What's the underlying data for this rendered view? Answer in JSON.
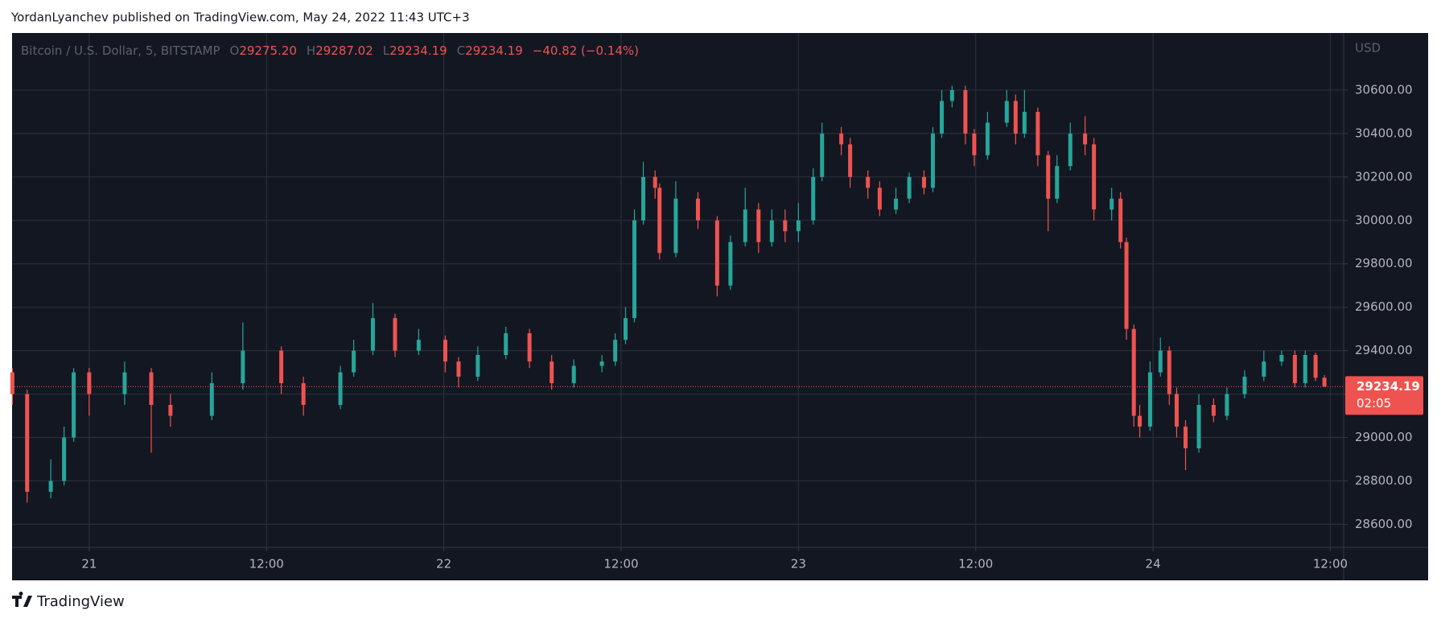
{
  "header": "YordanLyanchev published on TradingView.com, May 24, 2022 11:43 UTC+3",
  "footer": "TradingView",
  "chart_data": {
    "type": "candlestick",
    "symbol": "Bitcoin / U.S. Dollar, 5, BITSTAMP",
    "ohlc_legend": [
      {
        "name": "O",
        "value": "29275.20"
      },
      {
        "name": "H",
        "value": "29287.02"
      },
      {
        "name": "L",
        "value": "29234.19"
      },
      {
        "name": "C",
        "value": "29234.19"
      }
    ],
    "change": "−40.82 (−0.14%)",
    "currency": "USD",
    "up_color": "#26a69a",
    "down_color": "#ef5350",
    "grid": true,
    "xlim": [
      -5.22,
      84.9
    ],
    "xticks": [
      {
        "value": 0,
        "label": "21"
      },
      {
        "value": 12,
        "label": "12:00"
      },
      {
        "value": 24,
        "label": "22"
      },
      {
        "value": 36,
        "label": "12:00"
      },
      {
        "value": 48,
        "label": "23"
      },
      {
        "value": 60,
        "label": "12:00"
      },
      {
        "value": 72,
        "label": "24"
      },
      {
        "value": 84,
        "label": "12:00"
      }
    ],
    "ylim": [
      28494,
      30863
    ],
    "yticks": [
      {
        "value": 28600,
        "label": "28600.00"
      },
      {
        "value": 28800,
        "label": "28800.00"
      },
      {
        "value": 29000,
        "label": "29000.00"
      },
      {
        "value": 29200,
        "label": "29200.00"
      },
      {
        "value": 29400,
        "label": "29400.00"
      },
      {
        "value": 29600,
        "label": "29600.00"
      },
      {
        "value": 29800,
        "label": "29800.00"
      },
      {
        "value": 30000,
        "label": "30000.00"
      },
      {
        "value": 30200,
        "label": "30200.00"
      },
      {
        "value": 30400,
        "label": "30400.00"
      },
      {
        "value": 30600,
        "label": "30600.00"
      }
    ],
    "last_price": {
      "value": 29234.19,
      "label": "29234.19"
    },
    "countdown": "02:05",
    "x": [
      -5.2,
      -4.2,
      -2.6,
      -1.7,
      -1.05,
      0,
      2.4,
      4.2,
      5.5,
      8.3,
      10.4,
      13,
      14.5,
      17,
      17.9,
      19.2,
      20.7,
      22.3,
      24.1,
      25,
      26.3,
      28.2,
      29.8,
      31.3,
      32.8,
      34.7,
      35.6,
      36.3,
      36.9,
      37.5,
      38.3,
      38.6,
      39.7,
      41.2,
      42.5,
      43.4,
      44.4,
      45.3,
      46.2,
      47.1,
      48,
      49,
      49.6,
      50.9,
      51.5,
      52.7,
      53.5,
      54.6,
      55.5,
      56.5,
      57.1,
      57.7,
      58.4,
      59.3,
      59.9,
      60.8,
      62.1,
      62.7,
      63.3,
      64.2,
      64.9,
      65.5,
      66.4,
      67.4,
      68,
      69.2,
      69.8,
      70.2,
      70.7,
      71.1,
      71.8,
      72.5,
      73.1,
      73.6,
      74.2,
      75.1,
      76.1,
      77,
      78.2,
      79.5,
      80.7,
      81.6,
      82.3,
      83,
      83.6
    ],
    "open": [
      29300,
      29200,
      28750,
      28800,
      29000,
      29300,
      29200,
      29300,
      29150,
      29100,
      29250,
      29400,
      29250,
      29150,
      29300,
      29400,
      29550,
      29400,
      29450,
      29350,
      29280,
      29380,
      29480,
      29350,
      29250,
      29330,
      29350,
      29450,
      29550,
      30000,
      30200,
      30150,
      29850,
      30100,
      30000,
      29700,
      29900,
      30050,
      29900,
      30000,
      29950,
      30000,
      30200,
      30400,
      30350,
      30200,
      30150,
      30050,
      30100,
      30200,
      30150,
      30400,
      30550,
      30600,
      30400,
      30300,
      30450,
      30550,
      30400,
      30500,
      30300,
      30100,
      30250,
      30400,
      30350,
      30050,
      30100,
      29900,
      29500,
      29100,
      29050,
      29300,
      29400,
      29200,
      29050,
      28950,
      29150,
      29100,
      29200,
      29280,
      29350,
      29380,
      29250,
      29380,
      29275.2
    ],
    "high": [
      29320,
      29220,
      28900,
      29050,
      29320,
      29320,
      29350,
      29320,
      29200,
      29300,
      29530,
      29420,
      29280,
      29330,
      29450,
      29620,
      29570,
      29500,
      29470,
      29370,
      29420,
      29510,
      29500,
      29380,
      29360,
      29380,
      29480,
      29600,
      30050,
      30270,
      30230,
      30170,
      30180,
      30130,
      30020,
      29930,
      30150,
      30080,
      30050,
      30050,
      30080,
      30240,
      30450,
      30430,
      30380,
      30230,
      30180,
      30150,
      30220,
      30230,
      30430,
      30600,
      30620,
      30620,
      30420,
      30500,
      30600,
      30580,
      30600,
      30520,
      30320,
      30300,
      30450,
      30480,
      30380,
      30150,
      30130,
      29920,
      29520,
      29150,
      29350,
      29460,
      29420,
      29230,
      29080,
      29200,
      29180,
      29230,
      29310,
      29400,
      29400,
      29400,
      29400,
      29390,
      29287.02
    ],
    "low": [
      29150,
      28700,
      28720,
      28780,
      28980,
      29100,
      29150,
      28930,
      29050,
      29080,
      29220,
      29200,
      29100,
      29130,
      29280,
      29380,
      29370,
      29380,
      29300,
      29230,
      29260,
      29360,
      29320,
      29220,
      29230,
      29300,
      29330,
      29430,
      29530,
      29980,
      30100,
      29820,
      29830,
      29960,
      29650,
      29680,
      29880,
      29850,
      29880,
      29900,
      29900,
      29980,
      30180,
      30300,
      30150,
      30100,
      30020,
      30030,
      30080,
      30120,
      30130,
      30380,
      30520,
      30350,
      30250,
      30280,
      30430,
      30350,
      30380,
      30250,
      29950,
      30080,
      30230,
      30300,
      30000,
      30000,
      29870,
      29450,
      29050,
      29000,
      29030,
      29280,
      29150,
      29000,
      28850,
      28930,
      29070,
      29080,
      29180,
      29260,
      29330,
      29230,
      29230,
      29260,
      29234.19
    ],
    "close": [
      29200,
      28750,
      28800,
      29000,
      29300,
      29200,
      29300,
      29150,
      29100,
      29250,
      29400,
      29250,
      29150,
      29300,
      29400,
      29550,
      29400,
      29450,
      29350,
      29280,
      29380,
      29480,
      29350,
      29250,
      29330,
      29350,
      29450,
      29550,
      30000,
      30200,
      30150,
      29850,
      30100,
      30000,
      29700,
      29900,
      30050,
      29900,
      30000,
      29950,
      30000,
      30200,
      30400,
      30350,
      30200,
      30150,
      30050,
      30100,
      30200,
      30150,
      30400,
      30550,
      30600,
      30400,
      30300,
      30450,
      30550,
      30400,
      30500,
      30300,
      30100,
      30250,
      30400,
      30350,
      30050,
      30100,
      29900,
      29500,
      29100,
      29050,
      29300,
      29400,
      29200,
      29050,
      28950,
      29150,
      29100,
      29200,
      29280,
      29350,
      29380,
      29250,
      29380,
      29275.2,
      29234.19
    ]
  }
}
